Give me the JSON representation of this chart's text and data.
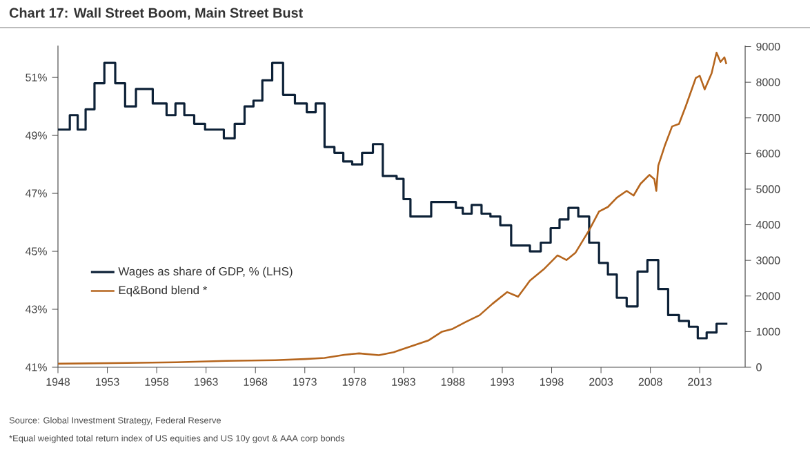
{
  "chart_data": {
    "type": "line",
    "title": "Chart 17: Wall Street Boom, Main Street Bust",
    "annotations": [
      "Source: Global Investment Strategy, Federal Reserve",
      "*Equal weighted total return index of US equities and US 10y govt & AAA corp bonds"
    ],
    "xlim": [
      1948,
      2017.6
    ],
    "xticks": [
      1948,
      1953,
      1958,
      1963,
      1968,
      1973,
      1978,
      1983,
      1988,
      1993,
      1998,
      2003,
      2008,
      2013
    ],
    "ylim": [
      41,
      52.1
    ],
    "yticks": [
      {
        "value": 41,
        "label": "41%"
      },
      {
        "value": 43,
        "label": "43%"
      },
      {
        "value": 45,
        "label": "45%"
      },
      {
        "value": 47,
        "label": "47%"
      },
      {
        "value": 49,
        "label": "49%"
      },
      {
        "value": 51,
        "label": "51%"
      }
    ],
    "y2lim": [
      0,
      9030
    ],
    "y2ticks": [
      0,
      1000,
      2000,
      3000,
      4000,
      5000,
      6000,
      7000,
      8000,
      9000
    ],
    "legend": "left",
    "series": [
      {
        "name": "Wages as share of GDP, % (LHS)",
        "type": "step",
        "color": "#0d2137",
        "x": [
          1948.0,
          1949.2,
          1950.0,
          1950.8,
          1951.7,
          1952.7,
          1953.8,
          1954.8,
          1955.9,
          1957.6,
          1959.0,
          1959.9,
          1960.8,
          1961.8,
          1962.9,
          1964.8,
          1965.9,
          1966.9,
          1967.8,
          1968.7,
          1969.7,
          1970.8,
          1972.0,
          1973.2,
          1974.1,
          1975.0,
          1976.0,
          1976.9,
          1977.8,
          1978.8,
          1979.9,
          1980.9,
          1982.3,
          1983.0,
          1983.7,
          1985.8,
          1988.3,
          1989.0,
          1989.9,
          1990.9,
          1991.8,
          1992.8,
          1993.9,
          1995.8,
          1996.9,
          1997.9,
          1998.8,
          1999.7,
          2000.7,
          2001.8,
          2002.8,
          2003.7,
          2004.6,
          2005.6,
          2006.7,
          2007.7,
          2008.8,
          2009.8,
          2010.9,
          2011.9,
          2012.8,
          2013.7,
          2014.7,
          2015.8
        ],
        "values": [
          49.2,
          49.7,
          49.2,
          49.9,
          50.8,
          51.5,
          50.8,
          50.0,
          50.6,
          50.1,
          49.7,
          50.1,
          49.7,
          49.4,
          49.2,
          48.9,
          49.4,
          50.0,
          50.2,
          50.9,
          51.5,
          50.4,
          50.1,
          49.8,
          50.1,
          48.6,
          48.4,
          48.1,
          48.0,
          48.4,
          48.7,
          47.6,
          47.5,
          46.8,
          46.2,
          46.7,
          46.5,
          46.3,
          46.6,
          46.3,
          46.2,
          45.9,
          45.2,
          45.0,
          45.3,
          45.8,
          46.1,
          46.5,
          46.2,
          45.3,
          44.6,
          44.2,
          43.4,
          43.1,
          44.3,
          44.7,
          43.7,
          42.8,
          42.6,
          42.4,
          42.0,
          42.2,
          42.5,
          42.5
        ]
      },
      {
        "name": "Eq&Bond blend *",
        "axis": "y2",
        "color": "#b5651d",
        "x": [
          1948,
          1955,
          1960,
          1965,
          1970,
          1973,
          1975,
          1977,
          1978.5,
          1980.5,
          1982,
          1982.7,
          1984.1,
          1985.5,
          1986.9,
          1987.9,
          1989.3,
          1990.7,
          1992.0,
          1993.5,
          1994.6,
          1995.8,
          1997.2,
          1998.6,
          1999.5,
          2000.4,
          2001.8,
          2002.8,
          2003.7,
          2004.6,
          2005.6,
          2006.3,
          2007.0,
          2007.9,
          2008.4,
          2008.6,
          2008.8,
          2009.5,
          2010.2,
          2010.9,
          2011.6,
          2012.6,
          2013.0,
          2013.5,
          2014.2,
          2014.7,
          2015.1,
          2015.5,
          2015.7
        ],
        "values": [
          100,
          120,
          140,
          180,
          200,
          230,
          260,
          350,
          390,
          340,
          420,
          490,
          620,
          750,
          1000,
          1070,
          1270,
          1460,
          1780,
          2110,
          1980,
          2430,
          2750,
          3140,
          3010,
          3210,
          3850,
          4370,
          4500,
          4760,
          4950,
          4820,
          5150,
          5400,
          5280,
          4950,
          5660,
          6250,
          6760,
          6830,
          7340,
          8120,
          8180,
          7800,
          8250,
          8830,
          8570,
          8700,
          8510
        ]
      }
    ]
  }
}
